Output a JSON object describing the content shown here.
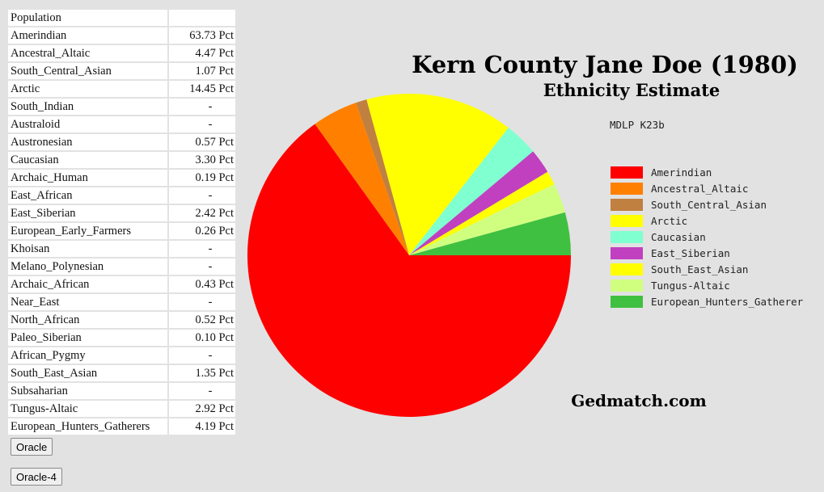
{
  "table": {
    "header": "Population",
    "rows": [
      {
        "name": "Amerindian",
        "value": "63.73 Pct"
      },
      {
        "name": "Ancestral_Altaic",
        "value": "4.47 Pct"
      },
      {
        "name": "South_Central_Asian",
        "value": "1.07 Pct"
      },
      {
        "name": "Arctic",
        "value": "14.45 Pct"
      },
      {
        "name": "South_Indian",
        "value": "-"
      },
      {
        "name": "Australoid",
        "value": "-"
      },
      {
        "name": "Austronesian",
        "value": "0.57 Pct"
      },
      {
        "name": "Caucasian",
        "value": "3.30 Pct"
      },
      {
        "name": "Archaic_Human",
        "value": "0.19 Pct"
      },
      {
        "name": "East_African",
        "value": "-"
      },
      {
        "name": "East_Siberian",
        "value": "2.42 Pct"
      },
      {
        "name": "European_Early_Farmers",
        "value": "0.26 Pct"
      },
      {
        "name": "Khoisan",
        "value": "-"
      },
      {
        "name": "Melano_Polynesian",
        "value": "-"
      },
      {
        "name": "Archaic_African",
        "value": "0.43 Pct"
      },
      {
        "name": "Near_East",
        "value": "-"
      },
      {
        "name": "North_African",
        "value": "0.52 Pct"
      },
      {
        "name": "Paleo_Siberian",
        "value": "0.10 Pct"
      },
      {
        "name": "African_Pygmy",
        "value": "-"
      },
      {
        "name": "South_East_Asian",
        "value": "1.35 Pct"
      },
      {
        "name": "Subsaharian",
        "value": "-"
      },
      {
        "name": "Tungus-Altaic",
        "value": "2.92 Pct"
      },
      {
        "name": "European_Hunters_Gatherers",
        "value": "4.19 Pct"
      }
    ]
  },
  "buttons": {
    "oracle": "Oracle",
    "oracle4": "Oracle-4"
  },
  "chart_data": {
    "type": "pie",
    "title": "Kern County Jane Doe (1980)",
    "subtitle": "Ethnicity Estimate",
    "calculator": "MDLP K23b",
    "site": "Gedmatch.com",
    "start_angle_deg": 0,
    "direction": "counterclockwise",
    "legend_position": "right",
    "slices": [
      {
        "label": "Amerindian",
        "value": 63.73,
        "color": "#ff0000"
      },
      {
        "label": "Ancestral_Altaic",
        "value": 4.47,
        "color": "#ff8000"
      },
      {
        "label": "South_Central_Asian",
        "value": 1.07,
        "color": "#c08040"
      },
      {
        "label": "Arctic",
        "value": 14.45,
        "color": "#ffff00"
      },
      {
        "label": "Caucasian",
        "value": 3.3,
        "color": "#80ffd0"
      },
      {
        "label": "East_Siberian",
        "value": 2.42,
        "color": "#c040c0"
      },
      {
        "label": "South_East_Asian",
        "value": 1.35,
        "color": "#ffff00"
      },
      {
        "label": "Tungus-Altaic",
        "value": 2.92,
        "color": "#d0ff80"
      },
      {
        "label": "European_Hunters_Gatherer",
        "value": 4.19,
        "color": "#40c040"
      }
    ]
  }
}
